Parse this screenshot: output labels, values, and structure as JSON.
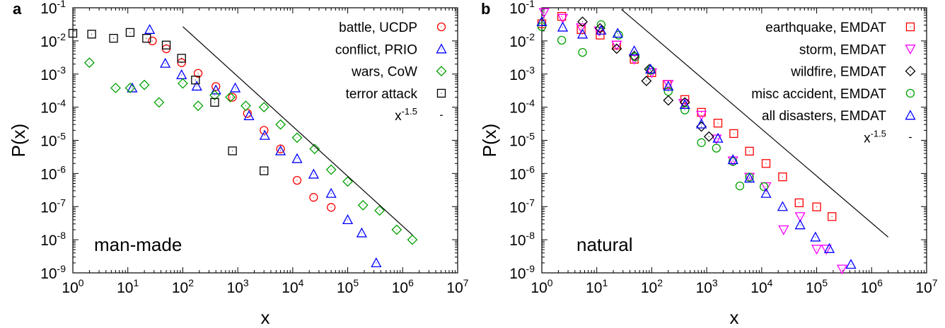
{
  "chart_data": [
    {
      "type": "scatter",
      "panel_label": "a",
      "annotation": "man-made",
      "xlabel": "x",
      "ylabel": "P(x)",
      "x_scale": "log",
      "y_scale": "log",
      "xlim": [
        1,
        10000000
      ],
      "ylim": [
        1e-09,
        0.1
      ],
      "legend_position": "top-right",
      "x_ticks": [
        {
          "base": "10",
          "exp": "0",
          "value": 1
        },
        {
          "base": "10",
          "exp": "1",
          "value": 10
        },
        {
          "base": "10",
          "exp": "2",
          "value": 100
        },
        {
          "base": "10",
          "exp": "3",
          "value": 1000
        },
        {
          "base": "10",
          "exp": "4",
          "value": 10000
        },
        {
          "base": "10",
          "exp": "5",
          "value": 100000
        },
        {
          "base": "10",
          "exp": "6",
          "value": 1000000
        },
        {
          "base": "10",
          "exp": "7",
          "value": 10000000
        }
      ],
      "y_ticks": [
        {
          "base": "10",
          "exp": "-9",
          "value": 1e-09
        },
        {
          "base": "10",
          "exp": "-8",
          "value": 1e-08
        },
        {
          "base": "10",
          "exp": "-7",
          "value": 1e-07
        },
        {
          "base": "10",
          "exp": "-6",
          "value": 1e-06
        },
        {
          "base": "10",
          "exp": "-5",
          "value": 1e-05
        },
        {
          "base": "10",
          "exp": "-4",
          "value": 0.0001
        },
        {
          "base": "10",
          "exp": "-3",
          "value": 0.001
        },
        {
          "base": "10",
          "exp": "-2",
          "value": 0.01
        },
        {
          "base": "10",
          "exp": "-1",
          "value": 0.1
        }
      ],
      "series": [
        {
          "name": "battle, UCDP",
          "marker": "circle",
          "color": "#ff0000",
          "points": [
            [
              28,
              0.01
            ],
            [
              50,
              0.0058
            ],
            [
              95,
              0.0022
            ],
            [
              190,
              0.00105
            ],
            [
              400,
              0.00042
            ],
            [
              800,
              0.0002
            ],
            [
              1500,
              6.5e-05
            ],
            [
              3000,
              2e-05
            ],
            [
              6000,
              5.5e-06
            ],
            [
              12000,
              6.2e-07
            ],
            [
              24000,
              1.9e-07
            ],
            [
              50000,
              9.5e-08
            ]
          ]
        },
        {
          "name": "conflict, PRIO",
          "marker": "triangle",
          "color": "#0000ff",
          "points": [
            [
              12,
              0.00038
            ],
            [
              25,
              0.022
            ],
            [
              48,
              0.0021
            ],
            [
              95,
              0.00095
            ],
            [
              180,
              0.00043
            ],
            [
              400,
              0.00033
            ],
            [
              900,
              0.00038
            ],
            [
              1600,
              5.5e-05
            ],
            [
              3100,
              1.4e-05
            ],
            [
              6000,
              4.8e-06
            ],
            [
              12000,
              2.8e-06
            ],
            [
              24000,
              9.5e-07
            ],
            [
              50000,
              2.5e-07
            ],
            [
              100000,
              4e-08
            ],
            [
              180000,
              1.6e-08
            ],
            [
              330000,
              2e-09
            ]
          ]
        },
        {
          "name": "wars, CoW",
          "marker": "diamond",
          "color": "#00a000",
          "points": [
            [
              2,
              0.0022
            ],
            [
              6,
              0.00038
            ],
            [
              11,
              0.00038
            ],
            [
              20,
              0.00047
            ],
            [
              37,
              0.00014
            ],
            [
              100,
              0.00052
            ],
            [
              190,
              0.00011
            ],
            [
              380,
              0.00023
            ],
            [
              730,
              0.0002
            ],
            [
              1400,
              0.00011
            ],
            [
              3000,
              0.0001
            ],
            [
              6000,
              3e-05
            ],
            [
              12000,
              1.2e-05
            ],
            [
              25000,
              5.5e-06
            ],
            [
              50000,
              1.3e-06
            ],
            [
              100000,
              5.7e-07
            ],
            [
              190000,
              1.1e-07
            ],
            [
              380000,
              7.6e-08
            ],
            [
              780000,
              2e-08
            ],
            [
              1500000,
              1e-08
            ]
          ]
        },
        {
          "name": "terror attack",
          "marker": "square",
          "color": "#000000",
          "points": [
            [
              1,
              0.017
            ],
            [
              2.2,
              0.016
            ],
            [
              5.5,
              0.012
            ],
            [
              11,
              0.018
            ],
            [
              22,
              0.012
            ],
            [
              50,
              0.0075
            ],
            [
              95,
              0.003
            ],
            [
              170,
              0.00066
            ],
            [
              380,
              0.00014
            ],
            [
              800,
              4.8e-06
            ],
            [
              3000,
              1.2e-06
            ]
          ]
        },
        {
          "name": "x",
          "name_exp": "-1.5",
          "marker": "line",
          "color": "#000000",
          "points": [
            [
              100,
              0.027
            ],
            [
              1500000,
              1.4e-08
            ]
          ]
        }
      ]
    },
    {
      "type": "scatter",
      "panel_label": "b",
      "annotation": "natural",
      "xlabel": "x",
      "ylabel": "P(x)",
      "x_scale": "log",
      "y_scale": "log",
      "xlim": [
        1,
        10000000
      ],
      "ylim": [
        1e-09,
        0.1
      ],
      "legend_position": "top-right",
      "x_ticks": [
        {
          "base": "10",
          "exp": "0",
          "value": 1
        },
        {
          "base": "10",
          "exp": "1",
          "value": 10
        },
        {
          "base": "10",
          "exp": "2",
          "value": 100
        },
        {
          "base": "10",
          "exp": "3",
          "value": 1000
        },
        {
          "base": "10",
          "exp": "4",
          "value": 10000
        },
        {
          "base": "10",
          "exp": "5",
          "value": 100000
        },
        {
          "base": "10",
          "exp": "6",
          "value": 1000000
        },
        {
          "base": "10",
          "exp": "7",
          "value": 10000000
        }
      ],
      "y_ticks": [
        {
          "base": "10",
          "exp": "-9",
          "value": 1e-09
        },
        {
          "base": "10",
          "exp": "-8",
          "value": 1e-08
        },
        {
          "base": "10",
          "exp": "-7",
          "value": 1e-07
        },
        {
          "base": "10",
          "exp": "-6",
          "value": 1e-06
        },
        {
          "base": "10",
          "exp": "-5",
          "value": 1e-05
        },
        {
          "base": "10",
          "exp": "-4",
          "value": 0.0001
        },
        {
          "base": "10",
          "exp": "-3",
          "value": 0.001
        },
        {
          "base": "10",
          "exp": "-2",
          "value": 0.01
        },
        {
          "base": "10",
          "exp": "-1",
          "value": 0.1
        }
      ],
      "series": [
        {
          "name": "earthquake, EMDAT",
          "marker": "square",
          "color": "#ff0000",
          "points": [
            [
              1,
              0.033
            ],
            [
              2.3,
              0.055
            ],
            [
              5.2,
              0.022
            ],
            [
              11.5,
              0.015
            ],
            [
              23,
              0.0075
            ],
            [
              48,
              0.0028
            ],
            [
              100,
              0.0011
            ],
            [
              190,
              0.00048
            ],
            [
              400,
              0.00017
            ],
            [
              800,
              7e-05
            ],
            [
              1600,
              3.3e-05
            ],
            [
              3100,
              1.6e-05
            ],
            [
              6000,
              4.7e-06
            ],
            [
              12000,
              2e-06
            ],
            [
              24000,
              7.9e-07
            ],
            [
              48000,
              1.3e-07
            ],
            [
              100000,
              9.8e-08
            ],
            [
              190000,
              5e-08
            ]
          ]
        },
        {
          "name": "storm, EMDAT",
          "marker": "triangle-down",
          "color": "#ff00ff",
          "points": [
            [
              1.1,
              0.072
            ],
            [
              2.4,
              0.048
            ],
            [
              5.2,
              0.025
            ],
            [
              11,
              0.02
            ],
            [
              23,
              0.0075
            ],
            [
              48,
              0.0028
            ],
            [
              100,
              0.0011
            ],
            [
              200,
              0.00049
            ],
            [
              380,
              0.00013
            ],
            [
              800,
              5.7e-05
            ],
            [
              1500,
              1.1e-05
            ],
            [
              3000,
              2.4e-06
            ],
            [
              6000,
              7.7e-07
            ],
            [
              12000,
              4e-07
            ],
            [
              25000,
              2e-08
            ],
            [
              50000,
              5e-08
            ],
            [
              100000,
              5.2e-09
            ],
            [
              150000,
              5.2e-09
            ],
            [
              290000,
              1.3e-09
            ]
          ]
        },
        {
          "name": "wildfire, EMDAT",
          "marker": "diamond",
          "color": "#000000",
          "points": [
            [
              5.5,
              0.038
            ],
            [
              11.5,
              0.024
            ],
            [
              23,
              0.0058
            ],
            [
              48,
              0.0035
            ],
            [
              80,
              0.00062
            ],
            [
              90,
              0.0014
            ],
            [
              200,
              0.00016
            ],
            [
              400,
              0.00014
            ],
            [
              800,
              2.6e-05
            ],
            [
              1100,
              1.3e-05
            ]
          ]
        },
        {
          "name": "misc accident, EMDAT",
          "marker": "circle",
          "color": "#00a000",
          "points": [
            [
              1,
              0.027
            ],
            [
              2.3,
              0.0105
            ],
            [
              5.5,
              0.0045
            ],
            [
              12,
              0.031
            ],
            [
              25,
              0.015
            ],
            [
              50,
              0.0033
            ],
            [
              95,
              0.0013
            ],
            [
              200,
              0.0003
            ],
            [
              400,
              8.2e-05
            ],
            [
              800,
              8.5e-06
            ],
            [
              1500,
              5.8e-06
            ],
            [
              3000,
              2.3e-06
            ],
            [
              4000,
              4.2e-07
            ],
            [
              6000,
              7.7e-07
            ],
            [
              11000,
              4e-07
            ]
          ]
        },
        {
          "name": "all disasters, EMDAT",
          "marker": "triangle",
          "color": "#0000ff",
          "points": [
            [
              1,
              0.038
            ],
            [
              2.4,
              0.026
            ],
            [
              5.5,
              0.016
            ],
            [
              12,
              0.021
            ],
            [
              24,
              0.017
            ],
            [
              48,
              0.005
            ],
            [
              95,
              0.0014
            ],
            [
              200,
              0.00043
            ],
            [
              400,
              0.00012
            ],
            [
              800,
              3.1e-05
            ],
            [
              1600,
              1.15e-05
            ],
            [
              3000,
              2.6e-06
            ],
            [
              6000,
              7.2e-07
            ],
            [
              12000,
              2.5e-07
            ],
            [
              24000,
              1e-07
            ],
            [
              50000,
              2.8e-08
            ],
            [
              95000,
              1.2e-08
            ],
            [
              170000,
              5.4e-09
            ],
            [
              420000,
              1.8e-09
            ]
          ]
        },
        {
          "name": "x",
          "name_exp": "-1.5",
          "marker": "line",
          "color": "#000000",
          "points": [
            [
              28,
              0.09
            ],
            [
              2000000,
              1.2e-08
            ]
          ]
        }
      ]
    }
  ]
}
